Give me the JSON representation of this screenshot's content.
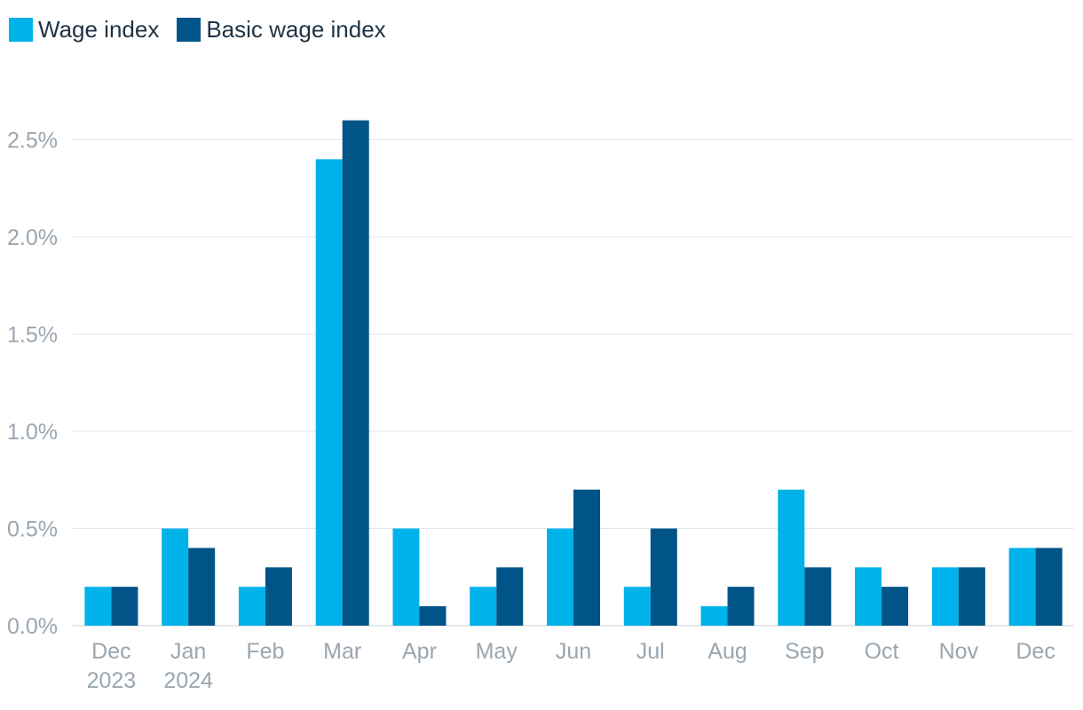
{
  "chart_data": {
    "type": "bar",
    "categories": [
      [
        "Dec",
        "2023"
      ],
      [
        "Jan",
        "2024"
      ],
      [
        "Feb"
      ],
      [
        "Mar"
      ],
      [
        "Apr"
      ],
      [
        "May"
      ],
      [
        "Jun"
      ],
      [
        "Jul"
      ],
      [
        "Aug"
      ],
      [
        "Sep"
      ],
      [
        "Oct"
      ],
      [
        "Nov"
      ],
      [
        "Dec"
      ]
    ],
    "series": [
      {
        "name": "Wage index",
        "color": "#00b2ea",
        "values": [
          0.2,
          0.5,
          0.2,
          2.4,
          0.5,
          0.2,
          0.5,
          0.2,
          0.1,
          0.7,
          0.3,
          0.3,
          0.4
        ]
      },
      {
        "name": "Basic wage index",
        "color": "#005487",
        "values": [
          0.2,
          0.4,
          0.3,
          2.6,
          0.1,
          0.3,
          0.7,
          0.5,
          0.2,
          0.3,
          0.2,
          0.3,
          0.4
        ]
      }
    ],
    "yticks": [
      0,
      0.5,
      1.0,
      1.5,
      2.0,
      2.5
    ],
    "ytick_labels": [
      "0.0%",
      "0.5%",
      "1.0%",
      "1.5%",
      "2.0%",
      "2.5%"
    ],
    "ylim": [
      0,
      2.5
    ],
    "grid": true,
    "legend_position": "top-left",
    "xlabel": "",
    "ylabel": ""
  }
}
